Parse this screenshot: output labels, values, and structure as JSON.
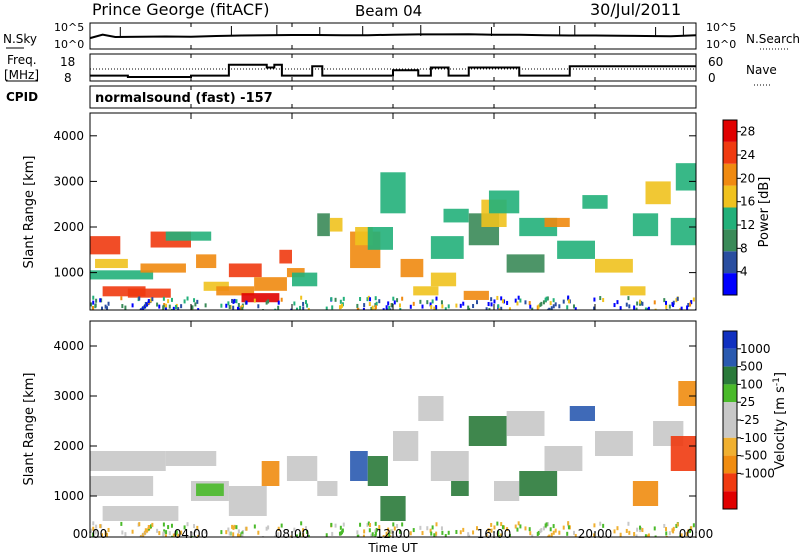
{
  "header": {
    "station": "Prince George (fitACF)",
    "beam": "Beam 04",
    "date": "30/Jul/2011"
  },
  "noise_panel": {
    "left_label": "N.Sky",
    "right_label": "N.Search",
    "left_ticks": [
      "10^5",
      "10^0"
    ],
    "right_ticks": [
      "10^5",
      "10^0"
    ]
  },
  "freq_panel": {
    "left_label_line1": "Freq.",
    "left_label_line2": "[MHz]",
    "right_label": "Nave",
    "left_ticks": [
      "18",
      "8"
    ],
    "right_ticks": [
      "60",
      "0"
    ]
  },
  "cpid_panel": {
    "label": "CPID",
    "program": "normalsound (fast) -157"
  },
  "time_axis": {
    "label": "Time UT",
    "ticks": [
      "00:00",
      "04:00",
      "08:00",
      "12:00",
      "16:00",
      "20:00",
      "00:00"
    ]
  },
  "colors": {
    "power_scale": [
      "#0000ff",
      "#2a4ea0",
      "#3a8a58",
      "#22b07a",
      "#f0c21e",
      "#f08a10",
      "#f03a10",
      "#e00000"
    ],
    "velocity_scale": [
      "#e00000",
      "#f03a10",
      "#f08c10",
      "#f0b030",
      "#c8c8c8",
      "#c8c8c8",
      "#4aba2a",
      "#2a7a3a",
      "#2a5ab0",
      "#1030c0"
    ]
  },
  "chart_data": [
    {
      "type": "line",
      "title": "",
      "xlabel": "",
      "ylabel": "N.Sky",
      "series": [
        {
          "name": "N.Sky",
          "x": [
            0,
            0.5,
            1,
            2,
            3,
            4,
            5,
            6,
            7,
            8,
            9,
            10,
            11,
            12,
            13,
            14,
            15,
            16,
            17,
            18,
            19,
            20,
            21,
            22,
            23,
            24
          ],
          "values": [
            4.2,
            5.5,
            4.6,
            4.7,
            4.8,
            4.7,
            5.0,
            5.2,
            5.3,
            5.4,
            5.4,
            5.3,
            5.3,
            5.5,
            5.6,
            5.6,
            5.7,
            5.5,
            5.5,
            5.3,
            5.2,
            5.2,
            5.1,
            5.0,
            4.9,
            5.3
          ]
        }
      ],
      "ylim": [
        0,
        10
      ]
    },
    {
      "type": "line",
      "title": "",
      "xlabel": "",
      "ylabel": "Freq. [MHz]",
      "series": [
        {
          "name": "Freq.",
          "x": [
            0,
            0.3,
            0.3,
            1.5,
            1.5,
            4.0,
            4.0,
            5.5,
            5.5,
            7.0,
            7.0,
            7.3,
            7.3,
            7.6,
            7.6,
            8.8,
            8.8,
            9.2,
            9.2,
            10.0,
            10.0,
            12.0,
            12.0,
            13.0,
            13.0,
            13.5,
            13.5,
            14.2,
            14.2,
            15.0,
            15.0,
            15.5,
            15.5,
            17.0,
            17.0,
            19.0,
            19.0,
            24.0
          ],
          "values": [
            10,
            10,
            10,
            10,
            9.5,
            9.5,
            10,
            10,
            14,
            14,
            13,
            13,
            14,
            14,
            10,
            10,
            13.5,
            13.5,
            10,
            10,
            10,
            10,
            12,
            12,
            10,
            10,
            13,
            13,
            10,
            10,
            13,
            13,
            13,
            13,
            10,
            10,
            13.5,
            13.5
          ]
        }
      ],
      "ylim": [
        8,
        18
      ]
    },
    {
      "type": "heatmap",
      "title": "",
      "xlabel": "Time UT",
      "ylabel": "Slant Range [km]",
      "colorbar_label": "Power [dB]",
      "colorbar_ticks": [
        4,
        8,
        12,
        16,
        20,
        24,
        28
      ],
      "colorbar_range": [
        0,
        30
      ],
      "xlim": [
        0,
        24
      ],
      "ylim": [
        180,
        4500
      ],
      "y_ticks": [
        1000,
        2000,
        3000,
        4000
      ],
      "cells": [
        [
          0.0,
          1.2,
          1400,
          1800,
          26
        ],
        [
          0.2,
          1.5,
          1100,
          1300,
          16
        ],
        [
          0.0,
          2.5,
          850,
          1050,
          14
        ],
        [
          0.5,
          2.2,
          480,
          700,
          26
        ],
        [
          1.5,
          3.2,
          450,
          650,
          24
        ],
        [
          2.0,
          3.8,
          1000,
          1200,
          20
        ],
        [
          2.4,
          4.0,
          1550,
          1900,
          24
        ],
        [
          3.0,
          4.8,
          1700,
          1900,
          14
        ],
        [
          4.2,
          5.0,
          1100,
          1400,
          20
        ],
        [
          4.5,
          5.5,
          600,
          800,
          18
        ],
        [
          5.0,
          6.5,
          500,
          700,
          22
        ],
        [
          5.5,
          6.8,
          900,
          1200,
          26
        ],
        [
          6.0,
          7.5,
          350,
          550,
          28
        ],
        [
          6.5,
          7.8,
          600,
          900,
          22
        ],
        [
          7.5,
          8.0,
          1200,
          1500,
          26
        ],
        [
          7.8,
          8.5,
          900,
          1100,
          20
        ],
        [
          8.0,
          9.0,
          700,
          1000,
          12
        ],
        [
          9.0,
          9.5,
          1800,
          2300,
          10
        ],
        [
          9.5,
          10.0,
          1900,
          2200,
          16
        ],
        [
          10.3,
          11.5,
          1100,
          1900,
          20
        ],
        [
          10.5,
          11.2,
          1600,
          2000,
          16
        ],
        [
          11.0,
          12.0,
          1500,
          2000,
          12
        ],
        [
          11.5,
          12.5,
          2300,
          3200,
          14
        ],
        [
          12.3,
          13.2,
          900,
          1300,
          20
        ],
        [
          12.8,
          13.8,
          500,
          700,
          18
        ],
        [
          13.5,
          14.5,
          700,
          1000,
          16
        ],
        [
          13.5,
          14.8,
          1300,
          1800,
          14
        ],
        [
          14.0,
          15.0,
          2100,
          2400,
          12
        ],
        [
          14.8,
          15.8,
          400,
          600,
          22
        ],
        [
          15.0,
          16.2,
          1600,
          2300,
          10
        ],
        [
          15.5,
          16.5,
          2000,
          2600,
          18
        ],
        [
          15.8,
          17.0,
          2300,
          2800,
          14
        ],
        [
          16.5,
          18.0,
          1000,
          1400,
          10
        ],
        [
          17.0,
          18.5,
          1800,
          2200,
          14
        ],
        [
          18.0,
          19.0,
          2000,
          2200,
          20
        ],
        [
          18.5,
          20.0,
          1300,
          1700,
          12
        ],
        [
          19.5,
          20.5,
          2400,
          2700,
          14
        ],
        [
          20.0,
          21.5,
          1000,
          1300,
          16
        ],
        [
          21.0,
          22.0,
          500,
          700,
          18
        ],
        [
          21.5,
          22.5,
          1800,
          2300,
          14
        ],
        [
          22.0,
          23.0,
          2500,
          3000,
          16
        ],
        [
          23.0,
          24.0,
          1600,
          2200,
          12
        ],
        [
          23.2,
          24.0,
          2800,
          3400,
          14
        ]
      ]
    },
    {
      "type": "heatmap",
      "title": "",
      "xlabel": "Time UT",
      "ylabel": "Slant Range [km]",
      "colorbar_label": "Velocity [m s^-1]",
      "colorbar_ticks": [
        -1000,
        -500,
        -100,
        -25,
        25,
        100,
        500,
        1000
      ],
      "xlim": [
        0,
        24
      ],
      "ylim": [
        180,
        4500
      ],
      "y_ticks": [
        1000,
        2000,
        3000,
        4000
      ],
      "cells": [
        [
          0.0,
          3.0,
          1500,
          1900,
          0
        ],
        [
          0.0,
          2.5,
          1000,
          1400,
          0
        ],
        [
          0.5,
          3.5,
          500,
          800,
          0
        ],
        [
          3.0,
          5.0,
          1600,
          1900,
          0
        ],
        [
          4.0,
          5.5,
          900,
          1300,
          0
        ],
        [
          4.2,
          5.3,
          1000,
          1250,
          80
        ],
        [
          5.5,
          7.0,
          600,
          1200,
          0
        ],
        [
          6.8,
          7.5,
          1200,
          1700,
          -300
        ],
        [
          7.8,
          9.0,
          1300,
          1800,
          0
        ],
        [
          9.0,
          9.8,
          1000,
          1300,
          0
        ],
        [
          10.3,
          11.0,
          1300,
          1900,
          800
        ],
        [
          11.0,
          11.8,
          1200,
          1800,
          300
        ],
        [
          11.5,
          12.5,
          500,
          1000,
          150
        ],
        [
          12.0,
          13.0,
          1700,
          2300,
          0
        ],
        [
          13.0,
          14.0,
          2500,
          3000,
          0
        ],
        [
          13.5,
          15.0,
          1300,
          1900,
          0
        ],
        [
          14.3,
          15.0,
          1000,
          1300,
          120
        ],
        [
          15.0,
          16.5,
          2000,
          2600,
          150
        ],
        [
          16.0,
          17.0,
          900,
          1300,
          0
        ],
        [
          16.5,
          18.0,
          2200,
          2700,
          0
        ],
        [
          17.0,
          18.5,
          1000,
          1500,
          120
        ],
        [
          18.0,
          19.5,
          1500,
          2000,
          0
        ],
        [
          19.0,
          20.0,
          2500,
          2800,
          600
        ],
        [
          20.0,
          21.5,
          1800,
          2300,
          0
        ],
        [
          21.5,
          22.5,
          800,
          1300,
          -400
        ],
        [
          22.3,
          23.5,
          2000,
          2500,
          0
        ],
        [
          23.0,
          24.0,
          1500,
          2200,
          -800
        ],
        [
          23.3,
          24.0,
          2800,
          3300,
          -300
        ]
      ]
    }
  ]
}
